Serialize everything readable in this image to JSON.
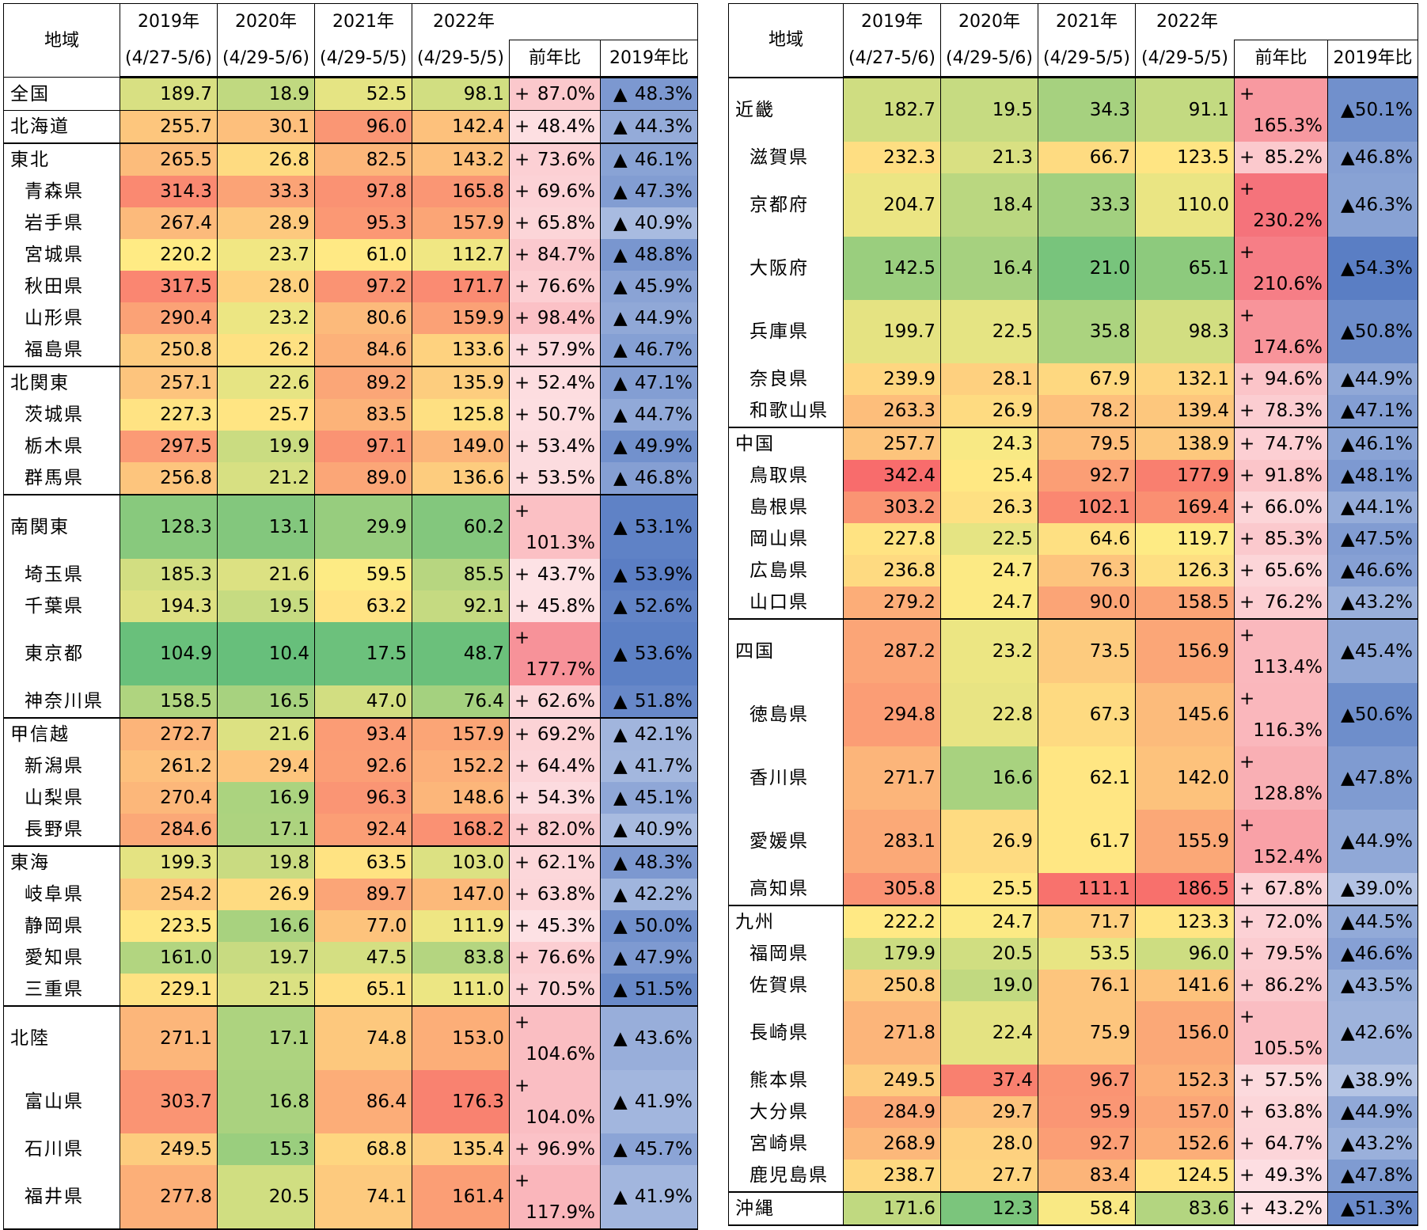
{
  "header": {
    "region": "地域",
    "y2019": "2019年",
    "y2020": "2020年",
    "y2021": "2021年",
    "y2022": "2022年",
    "p2019": "(4/27-5/6)",
    "p2020": "(4/29-5/6)",
    "p2021": "(4/29-5/5)",
    "p2022": "(4/29-5/5)",
    "yoy": "前年比",
    "vs2019": "2019年比"
  },
  "symbols": {
    "plus": "+",
    "triangle": "▲"
  },
  "colors": {
    "yoy_light": "#fde3e6",
    "yoy_mid": "#f9b7bc",
    "yoy_strong": "#f47c83",
    "vs_light": "#a3b9de",
    "vs_mid": "#7f9bd1",
    "vs_strong": "#5b7fc4"
  },
  "left_rows": [
    {
      "name": "全国",
      "sub": false,
      "group": "solo",
      "v2019": "189.7",
      "v2020": "18.9",
      "v2021": "52.5",
      "v2022": "98.1",
      "yoy": "87.0%",
      "vs2019": "48.3%"
    },
    {
      "name": "北海道",
      "sub": false,
      "group": "solo",
      "v2019": "255.7",
      "v2020": "30.1",
      "v2021": "96.0",
      "v2022": "142.4",
      "yoy": "48.4%",
      "vs2019": "44.3%"
    },
    {
      "name": "東北",
      "sub": false,
      "group": "grp",
      "v2019": "265.5",
      "v2020": "26.8",
      "v2021": "82.5",
      "v2022": "143.2",
      "yoy": "73.6%",
      "vs2019": "46.1%"
    },
    {
      "name": "青森県",
      "sub": true,
      "v2019": "314.3",
      "v2020": "33.3",
      "v2021": "97.8",
      "v2022": "165.8",
      "yoy": "69.6%",
      "vs2019": "47.3%"
    },
    {
      "name": "岩手県",
      "sub": true,
      "v2019": "267.4",
      "v2020": "28.9",
      "v2021": "95.3",
      "v2022": "157.9",
      "yoy": "65.8%",
      "vs2019": "40.9%"
    },
    {
      "name": "宮城県",
      "sub": true,
      "v2019": "220.2",
      "v2020": "23.7",
      "v2021": "61.0",
      "v2022": "112.7",
      "yoy": "84.7%",
      "vs2019": "48.8%"
    },
    {
      "name": "秋田県",
      "sub": true,
      "v2019": "317.5",
      "v2020": "28.0",
      "v2021": "97.2",
      "v2022": "171.7",
      "yoy": "76.6%",
      "vs2019": "45.9%"
    },
    {
      "name": "山形県",
      "sub": true,
      "v2019": "290.4",
      "v2020": "23.2",
      "v2021": "80.6",
      "v2022": "159.9",
      "yoy": "98.4%",
      "vs2019": "44.9%"
    },
    {
      "name": "福島県",
      "sub": true,
      "v2019": "250.8",
      "v2020": "26.2",
      "v2021": "84.6",
      "v2022": "133.6",
      "yoy": "57.9%",
      "vs2019": "46.7%"
    },
    {
      "name": "北関東",
      "sub": false,
      "group": "grp",
      "v2019": "257.1",
      "v2020": "22.6",
      "v2021": "89.2",
      "v2022": "135.9",
      "yoy": "52.4%",
      "vs2019": "47.1%"
    },
    {
      "name": "茨城県",
      "sub": true,
      "v2019": "227.3",
      "v2020": "25.7",
      "v2021": "83.5",
      "v2022": "125.8",
      "yoy": "50.7%",
      "vs2019": "44.7%"
    },
    {
      "name": "栃木県",
      "sub": true,
      "v2019": "297.5",
      "v2020": "19.9",
      "v2021": "97.1",
      "v2022": "149.0",
      "yoy": "53.4%",
      "vs2019": "49.9%"
    },
    {
      "name": "群馬県",
      "sub": true,
      "v2019": "256.8",
      "v2020": "21.2",
      "v2021": "89.0",
      "v2022": "136.6",
      "yoy": "53.5%",
      "vs2019": "46.8%"
    },
    {
      "name": "南関東",
      "sub": false,
      "group": "grp",
      "v2019": "128.3",
      "v2020": "13.1",
      "v2021": "29.9",
      "v2022": "60.2",
      "yoy": "101.3%",
      "vs2019": "53.1%"
    },
    {
      "name": "埼玉県",
      "sub": true,
      "v2019": "185.3",
      "v2020": "21.6",
      "v2021": "59.5",
      "v2022": "85.5",
      "yoy": "43.7%",
      "vs2019": "53.9%"
    },
    {
      "name": "千葉県",
      "sub": true,
      "v2019": "194.3",
      "v2020": "19.5",
      "v2021": "63.2",
      "v2022": "92.1",
      "yoy": "45.8%",
      "vs2019": "52.6%"
    },
    {
      "name": "東京都",
      "sub": true,
      "v2019": "104.9",
      "v2020": "10.4",
      "v2021": "17.5",
      "v2022": "48.7",
      "yoy": "177.7%",
      "vs2019": "53.6%"
    },
    {
      "name": "神奈川県",
      "sub": true,
      "v2019": "158.5",
      "v2020": "16.5",
      "v2021": "47.0",
      "v2022": "76.4",
      "yoy": "62.6%",
      "vs2019": "51.8%"
    },
    {
      "name": "甲信越",
      "sub": false,
      "group": "grp",
      "v2019": "272.7",
      "v2020": "21.6",
      "v2021": "93.4",
      "v2022": "157.9",
      "yoy": "69.2%",
      "vs2019": "42.1%"
    },
    {
      "name": "新潟県",
      "sub": true,
      "v2019": "261.2",
      "v2020": "29.4",
      "v2021": "92.6",
      "v2022": "152.2",
      "yoy": "64.4%",
      "vs2019": "41.7%"
    },
    {
      "name": "山梨県",
      "sub": true,
      "v2019": "270.4",
      "v2020": "16.9",
      "v2021": "96.3",
      "v2022": "148.6",
      "yoy": "54.3%",
      "vs2019": "45.1%"
    },
    {
      "name": "長野県",
      "sub": true,
      "v2019": "284.6",
      "v2020": "17.1",
      "v2021": "92.4",
      "v2022": "168.2",
      "yoy": "82.0%",
      "vs2019": "40.9%"
    },
    {
      "name": "東海",
      "sub": false,
      "group": "grp",
      "v2019": "199.3",
      "v2020": "19.8",
      "v2021": "63.5",
      "v2022": "103.0",
      "yoy": "62.1%",
      "vs2019": "48.3%"
    },
    {
      "name": "岐阜県",
      "sub": true,
      "v2019": "254.2",
      "v2020": "26.9",
      "v2021": "89.7",
      "v2022": "147.0",
      "yoy": "63.8%",
      "vs2019": "42.2%"
    },
    {
      "name": "静岡県",
      "sub": true,
      "v2019": "223.5",
      "v2020": "16.6",
      "v2021": "77.0",
      "v2022": "111.9",
      "yoy": "45.3%",
      "vs2019": "50.0%"
    },
    {
      "name": "愛知県",
      "sub": true,
      "v2019": "161.0",
      "v2020": "19.7",
      "v2021": "47.5",
      "v2022": "83.8",
      "yoy": "76.6%",
      "vs2019": "47.9%"
    },
    {
      "name": "三重県",
      "sub": true,
      "v2019": "229.1",
      "v2020": "21.5",
      "v2021": "65.1",
      "v2022": "111.0",
      "yoy": "70.5%",
      "vs2019": "51.5%"
    },
    {
      "name": "北陸",
      "sub": false,
      "group": "grp",
      "v2019": "271.1",
      "v2020": "17.1",
      "v2021": "74.8",
      "v2022": "153.0",
      "yoy": "104.6%",
      "vs2019": "43.6%"
    },
    {
      "name": "富山県",
      "sub": true,
      "v2019": "303.7",
      "v2020": "16.8",
      "v2021": "86.4",
      "v2022": "176.3",
      "yoy": "104.0%",
      "vs2019": "41.9%"
    },
    {
      "name": "石川県",
      "sub": true,
      "v2019": "249.5",
      "v2020": "15.3",
      "v2021": "68.8",
      "v2022": "135.4",
      "yoy": "96.9%",
      "vs2019": "45.7%"
    },
    {
      "name": "福井県",
      "sub": true,
      "v2019": "277.8",
      "v2020": "20.5",
      "v2021": "74.1",
      "v2022": "161.4",
      "yoy": "117.9%",
      "vs2019": "41.9%"
    }
  ],
  "right_rows": [
    {
      "name": "近畿",
      "sub": false,
      "group": "grp",
      "v2019": "182.7",
      "v2020": "19.5",
      "v2021": "34.3",
      "v2022": "91.1",
      "yoy": "165.3%",
      "vs2019": "50.1%"
    },
    {
      "name": "滋賀県",
      "sub": true,
      "v2019": "232.3",
      "v2020": "21.3",
      "v2021": "66.7",
      "v2022": "123.5",
      "yoy": "85.2%",
      "vs2019": "46.8%"
    },
    {
      "name": "京都府",
      "sub": true,
      "v2019": "204.7",
      "v2020": "18.4",
      "v2021": "33.3",
      "v2022": "110.0",
      "yoy": "230.2%",
      "vs2019": "46.3%"
    },
    {
      "name": "大阪府",
      "sub": true,
      "v2019": "142.5",
      "v2020": "16.4",
      "v2021": "21.0",
      "v2022": "65.1",
      "yoy": "210.6%",
      "vs2019": "54.3%"
    },
    {
      "name": "兵庫県",
      "sub": true,
      "v2019": "199.7",
      "v2020": "22.5",
      "v2021": "35.8",
      "v2022": "98.3",
      "yoy": "174.6%",
      "vs2019": "50.8%"
    },
    {
      "name": "奈良県",
      "sub": true,
      "v2019": "239.9",
      "v2020": "28.1",
      "v2021": "67.9",
      "v2022": "132.1",
      "yoy": "94.6%",
      "vs2019": "44.9%"
    },
    {
      "name": "和歌山県",
      "sub": true,
      "v2019": "263.3",
      "v2020": "26.9",
      "v2021": "78.2",
      "v2022": "139.4",
      "yoy": "78.3%",
      "vs2019": "47.1%"
    },
    {
      "name": "中国",
      "sub": false,
      "group": "grp",
      "v2019": "257.7",
      "v2020": "24.3",
      "v2021": "79.5",
      "v2022": "138.9",
      "yoy": "74.7%",
      "vs2019": "46.1%"
    },
    {
      "name": "鳥取県",
      "sub": true,
      "v2019": "342.4",
      "v2020": "25.4",
      "v2021": "92.7",
      "v2022": "177.9",
      "yoy": "91.8%",
      "vs2019": "48.1%"
    },
    {
      "name": "島根県",
      "sub": true,
      "v2019": "303.2",
      "v2020": "26.3",
      "v2021": "102.1",
      "v2022": "169.4",
      "yoy": "66.0%",
      "vs2019": "44.1%"
    },
    {
      "name": "岡山県",
      "sub": true,
      "v2019": "227.8",
      "v2020": "22.5",
      "v2021": "64.6",
      "v2022": "119.7",
      "yoy": "85.3%",
      "vs2019": "47.5%"
    },
    {
      "name": "広島県",
      "sub": true,
      "v2019": "236.8",
      "v2020": "24.7",
      "v2021": "76.3",
      "v2022": "126.3",
      "yoy": "65.6%",
      "vs2019": "46.6%"
    },
    {
      "name": "山口県",
      "sub": true,
      "v2019": "279.2",
      "v2020": "24.7",
      "v2021": "90.0",
      "v2022": "158.5",
      "yoy": "76.2%",
      "vs2019": "43.2%"
    },
    {
      "name": "四国",
      "sub": false,
      "group": "grp",
      "v2019": "287.2",
      "v2020": "23.2",
      "v2021": "73.5",
      "v2022": "156.9",
      "yoy": "113.4%",
      "vs2019": "45.4%"
    },
    {
      "name": "徳島県",
      "sub": true,
      "v2019": "294.8",
      "v2020": "22.8",
      "v2021": "67.3",
      "v2022": "145.6",
      "yoy": "116.3%",
      "vs2019": "50.6%"
    },
    {
      "name": "香川県",
      "sub": true,
      "v2019": "271.7",
      "v2020": "16.6",
      "v2021": "62.1",
      "v2022": "142.0",
      "yoy": "128.8%",
      "vs2019": "47.8%"
    },
    {
      "name": "愛媛県",
      "sub": true,
      "v2019": "283.1",
      "v2020": "26.9",
      "v2021": "61.7",
      "v2022": "155.9",
      "yoy": "152.4%",
      "vs2019": "44.9%"
    },
    {
      "name": "高知県",
      "sub": true,
      "v2019": "305.8",
      "v2020": "25.5",
      "v2021": "111.1",
      "v2022": "186.5",
      "yoy": "67.8%",
      "vs2019": "39.0%"
    },
    {
      "name": "九州",
      "sub": false,
      "group": "grp",
      "v2019": "222.2",
      "v2020": "24.7",
      "v2021": "71.7",
      "v2022": "123.3",
      "yoy": "72.0%",
      "vs2019": "44.5%"
    },
    {
      "name": "福岡県",
      "sub": true,
      "v2019": "179.9",
      "v2020": "20.5",
      "v2021": "53.5",
      "v2022": "96.0",
      "yoy": "79.5%",
      "vs2019": "46.6%"
    },
    {
      "name": "佐賀県",
      "sub": true,
      "v2019": "250.8",
      "v2020": "19.0",
      "v2021": "76.1",
      "v2022": "141.6",
      "yoy": "86.2%",
      "vs2019": "43.5%"
    },
    {
      "name": "長崎県",
      "sub": true,
      "v2019": "271.8",
      "v2020": "22.4",
      "v2021": "75.9",
      "v2022": "156.0",
      "yoy": "105.5%",
      "vs2019": "42.6%"
    },
    {
      "name": "熊本県",
      "sub": true,
      "v2019": "249.5",
      "v2020": "37.4",
      "v2021": "96.7",
      "v2022": "152.3",
      "yoy": "57.5%",
      "vs2019": "38.9%"
    },
    {
      "name": "大分県",
      "sub": true,
      "v2019": "284.9",
      "v2020": "29.7",
      "v2021": "95.9",
      "v2022": "157.0",
      "yoy": "63.8%",
      "vs2019": "44.9%"
    },
    {
      "name": "宮崎県",
      "sub": true,
      "v2019": "268.9",
      "v2020": "28.0",
      "v2021": "92.7",
      "v2022": "152.6",
      "yoy": "64.7%",
      "vs2019": "43.2%"
    },
    {
      "name": "鹿児島県",
      "sub": true,
      "v2019": "238.7",
      "v2020": "27.7",
      "v2021": "83.4",
      "v2022": "124.5",
      "yoy": "49.3%",
      "vs2019": "47.8%"
    },
    {
      "name": "沖縄",
      "sub": false,
      "group": "grp",
      "v2019": "171.6",
      "v2020": "12.3",
      "v2021": "58.4",
      "v2022": "83.6",
      "yoy": "43.2%",
      "vs2019": "51.3%"
    }
  ]
}
